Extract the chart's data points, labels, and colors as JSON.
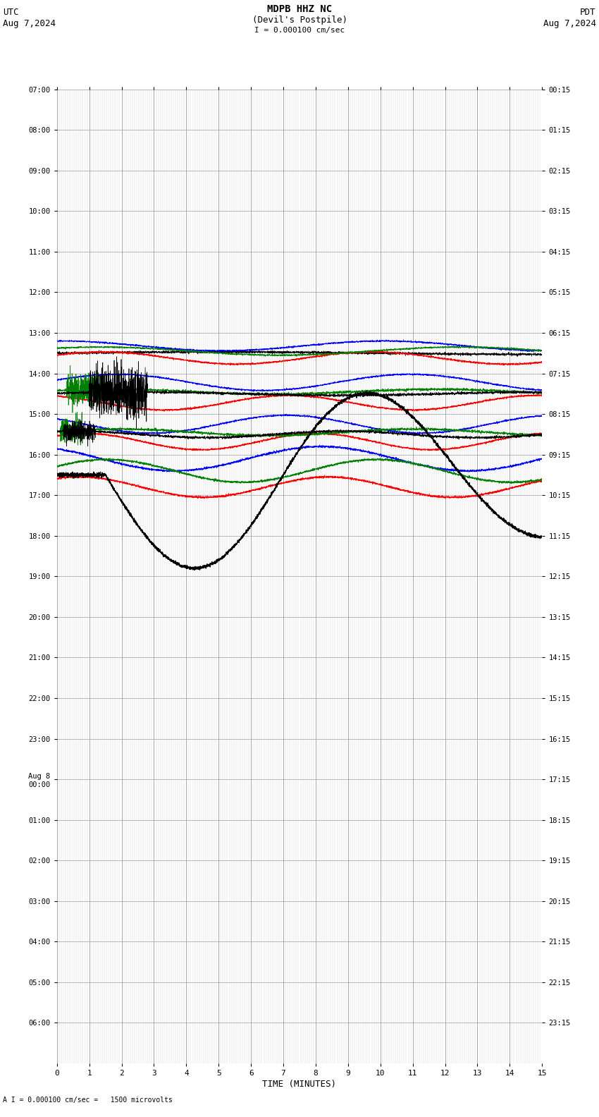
{
  "title_line1": "MDPB HHZ NC",
  "title_line2": "(Devil's Postpile)",
  "scale_label": "I = 0.000100 cm/sec",
  "left_header": "UTC",
  "left_date": "Aug 7,2024",
  "right_header": "PDT",
  "right_date": "Aug 7,2024",
  "bottom_label": "TIME (MINUTES)",
  "bottom_note": "A I = 0.000100 cm/sec =   1500 microvolts",
  "xlabel_ticks": [
    0,
    1,
    2,
    3,
    4,
    5,
    6,
    7,
    8,
    9,
    10,
    11,
    12,
    13,
    14,
    15
  ],
  "left_yticks_labels": [
    "07:00",
    "08:00",
    "09:00",
    "10:00",
    "11:00",
    "12:00",
    "13:00",
    "14:00",
    "15:00",
    "16:00",
    "17:00",
    "18:00",
    "19:00",
    "20:00",
    "21:00",
    "22:00",
    "23:00",
    "Aug 8\n00:00",
    "01:00",
    "02:00",
    "03:00",
    "04:00",
    "05:00",
    "06:00"
  ],
  "right_yticks_labels": [
    "00:15",
    "01:15",
    "02:15",
    "03:15",
    "04:15",
    "05:15",
    "06:15",
    "07:15",
    "08:15",
    "09:15",
    "10:15",
    "11:15",
    "12:15",
    "13:15",
    "14:15",
    "15:15",
    "16:15",
    "17:15",
    "18:15",
    "19:15",
    "20:15",
    "21:15",
    "22:15",
    "23:15"
  ],
  "fig_width": 8.5,
  "fig_height": 15.84,
  "bg_color": "#ffffff",
  "grid_major_color": "#999999",
  "grid_minor_color": "#cccccc",
  "trace_colors": [
    "#000000",
    "#ff0000",
    "#0000ff",
    "#008000"
  ],
  "n_rows": 24,
  "minor_per_minute": 15
}
